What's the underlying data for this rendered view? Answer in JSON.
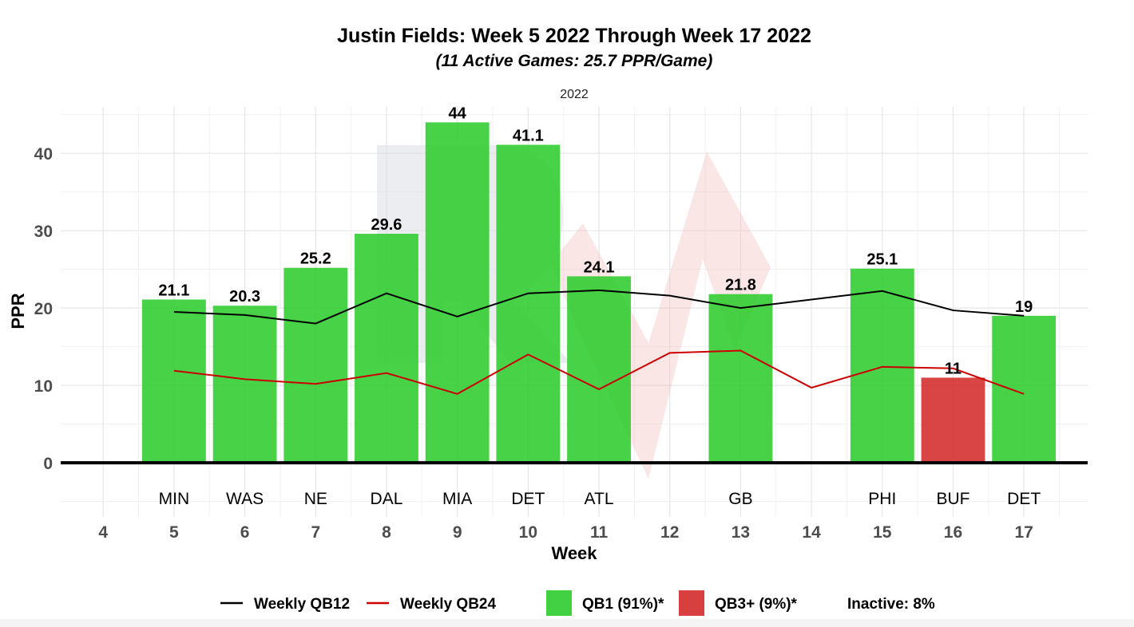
{
  "chart_data": {
    "type": "bar",
    "title": "Justin Fields: Week 5 2022 Through Week 17 2022",
    "subtitle": "(11 Active Games: 25.7 PPR/Game)",
    "facet_label": "2022",
    "xlabel": "Week",
    "ylabel": "PPR",
    "x_ticks": [
      4,
      5,
      6,
      7,
      8,
      9,
      10,
      11,
      12,
      13,
      14,
      15,
      16,
      17
    ],
    "y_ticks": [
      0,
      10,
      20,
      30,
      40
    ],
    "xlim": [
      3.4,
      17.9
    ],
    "ylim": [
      -7,
      46
    ],
    "grid": true,
    "bars": [
      {
        "week": 5,
        "value": 21.1,
        "label": "21.1",
        "opponent": "MIN",
        "tier": "QB1"
      },
      {
        "week": 6,
        "value": 20.3,
        "label": "20.3",
        "opponent": "WAS",
        "tier": "QB1"
      },
      {
        "week": 7,
        "value": 25.2,
        "label": "25.2",
        "opponent": "NE",
        "tier": "QB1"
      },
      {
        "week": 8,
        "value": 29.6,
        "label": "29.6",
        "opponent": "DAL",
        "tier": "QB1"
      },
      {
        "week": 9,
        "value": 44,
        "label": "44",
        "opponent": "MIA",
        "tier": "QB1"
      },
      {
        "week": 10,
        "value": 41.1,
        "label": "41.1",
        "opponent": "DET",
        "tier": "QB1"
      },
      {
        "week": 11,
        "value": 24.1,
        "label": "24.1",
        "opponent": "ATL",
        "tier": "QB1"
      },
      {
        "week": 13,
        "value": 21.8,
        "label": "21.8",
        "opponent": "GB",
        "tier": "QB1"
      },
      {
        "week": 15,
        "value": 25.1,
        "label": "25.1",
        "opponent": "PHI",
        "tier": "QB1"
      },
      {
        "week": 16,
        "value": 11,
        "label": "11",
        "opponent": "BUF",
        "tier": "QB3+"
      },
      {
        "week": 17,
        "value": 19,
        "label": "19",
        "opponent": "DET",
        "tier": "QB1"
      }
    ],
    "series": [
      {
        "name": "Weekly QB12",
        "color": "#000000",
        "x": [
          5,
          6,
          7,
          8,
          9,
          10,
          11,
          12,
          13,
          14,
          15,
          16,
          17
        ],
        "values": [
          19.5,
          19.1,
          18.0,
          21.9,
          18.9,
          21.9,
          22.3,
          21.6,
          20.0,
          21.1,
          22.2,
          19.7,
          19.0
        ]
      },
      {
        "name": "Weekly QB24",
        "color": "#cc0000",
        "x": [
          5,
          6,
          7,
          8,
          9,
          10,
          11,
          12,
          13,
          14,
          15,
          16,
          17
        ],
        "values": [
          11.9,
          10.8,
          10.2,
          11.6,
          8.9,
          14.0,
          9.5,
          14.2,
          14.5,
          9.7,
          12.4,
          12.2,
          8.9
        ]
      }
    ],
    "tier_colors": {
      "QB1": "#2ecc2e",
      "QB3+": "#d42a2a"
    },
    "legend": {
      "position": "bottom",
      "items": [
        {
          "kind": "line",
          "label": "Weekly QB12",
          "color": "#000000"
        },
        {
          "kind": "line",
          "label": "Weekly QB24",
          "color": "#cc0000"
        },
        {
          "kind": "box",
          "label": "QB1 (91%)*",
          "color": "#2ecc2e"
        },
        {
          "kind": "box",
          "label": "QB3+ (9%)*",
          "color": "#d42a2a"
        },
        {
          "kind": "text",
          "label": "Inactive: 8%"
        }
      ]
    }
  }
}
